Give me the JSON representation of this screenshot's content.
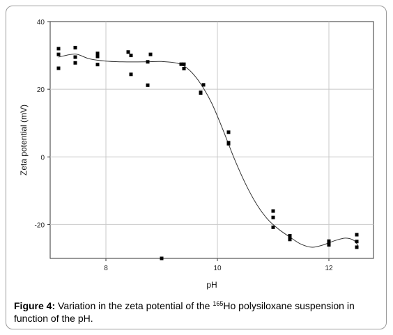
{
  "chart_data": {
    "type": "scatter",
    "title": "",
    "xlabel": "pH",
    "ylabel": "Zeta potential (mV)",
    "xlim": [
      7.0,
      12.8
    ],
    "ylim": [
      -30,
      40
    ],
    "xticks": [
      8,
      10,
      12
    ],
    "yticks": [
      -20,
      0,
      20,
      40
    ],
    "grid": true,
    "legend": "none",
    "series": [
      {
        "kind": "points",
        "points": [
          [
            7.15,
            32.0
          ],
          [
            7.15,
            30.3
          ],
          [
            7.15,
            26.2
          ],
          [
            7.45,
            32.3
          ],
          [
            7.45,
            29.5
          ],
          [
            7.45,
            27.8
          ],
          [
            7.85,
            30.6
          ],
          [
            7.85,
            29.7
          ],
          [
            7.85,
            27.3
          ],
          [
            8.4,
            31.0
          ],
          [
            8.45,
            30.0
          ],
          [
            8.45,
            24.4
          ],
          [
            8.75,
            28.1
          ],
          [
            8.75,
            21.2
          ],
          [
            8.8,
            30.3
          ],
          [
            9.0,
            -30.0
          ],
          [
            9.35,
            27.4
          ],
          [
            9.4,
            27.4
          ],
          [
            9.4,
            26.1
          ],
          [
            9.7,
            19.1
          ],
          [
            9.7,
            18.9
          ],
          [
            9.75,
            21.3
          ],
          [
            10.2,
            7.3
          ],
          [
            10.2,
            4.2
          ],
          [
            10.2,
            3.9
          ],
          [
            11.0,
            -16.0
          ],
          [
            11.0,
            -17.9
          ],
          [
            11.0,
            -20.8
          ],
          [
            11.3,
            -23.3
          ],
          [
            11.3,
            -23.9
          ],
          [
            11.3,
            -24.4
          ],
          [
            12.0,
            -24.9
          ],
          [
            12.0,
            -25.6
          ],
          [
            12.0,
            -26.0
          ],
          [
            12.5,
            -23.0
          ],
          [
            12.5,
            -25.0
          ],
          [
            12.5,
            -26.7
          ]
        ]
      },
      {
        "kind": "fit-line",
        "points": [
          [
            7.15,
            29.5
          ],
          [
            7.45,
            30.4
          ],
          [
            7.7,
            29.0
          ],
          [
            8.0,
            28.3
          ],
          [
            8.3,
            28.1
          ],
          [
            8.7,
            28.1
          ],
          [
            9.0,
            28.2
          ],
          [
            9.3,
            27.6
          ],
          [
            9.5,
            25.6
          ],
          [
            9.7,
            21.6
          ],
          [
            9.9,
            15.8
          ],
          [
            10.1,
            8.0
          ],
          [
            10.3,
            -0.4
          ],
          [
            10.5,
            -7.8
          ],
          [
            10.7,
            -13.9
          ],
          [
            10.9,
            -18.4
          ],
          [
            11.1,
            -21.4
          ],
          [
            11.3,
            -23.7
          ],
          [
            11.5,
            -25.8
          ],
          [
            11.7,
            -26.7
          ],
          [
            11.9,
            -26.0
          ],
          [
            12.1,
            -24.8
          ],
          [
            12.3,
            -24.0
          ],
          [
            12.45,
            -24.7
          ],
          [
            12.52,
            -26.2
          ]
        ]
      }
    ]
  },
  "caption": {
    "label": "Figure 4:",
    "text_before": " Variation in the zeta potential of the ",
    "isotope_mass": "165",
    "text_after": "Ho polysiloxane suspension in function of the pH."
  }
}
